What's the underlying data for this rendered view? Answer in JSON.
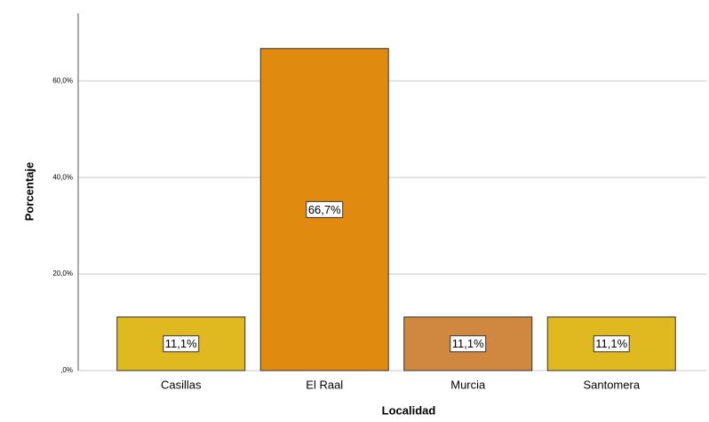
{
  "chart_data": {
    "type": "bar",
    "xlabel": "Localidad",
    "ylabel": "Porcentaje",
    "categories": [
      "Casillas",
      "El Raal",
      "Murcia",
      "Santomera"
    ],
    "values": [
      11.1,
      66.7,
      11.1,
      11.1
    ],
    "value_labels": [
      "11,1%",
      "66,7%",
      "11,1%",
      "11,1%"
    ],
    "colors": [
      "#e0b820",
      "#e08a10",
      "#d08840",
      "#e0b820"
    ],
    "ylim": [
      0,
      74
    ],
    "yticks": [
      {
        "value": 0,
        "label": ",0%"
      },
      {
        "value": 20,
        "label": "20,0%"
      },
      {
        "value": 40,
        "label": "40,0%"
      },
      {
        "value": 60,
        "label": "60,0%"
      }
    ],
    "grid": true
  }
}
